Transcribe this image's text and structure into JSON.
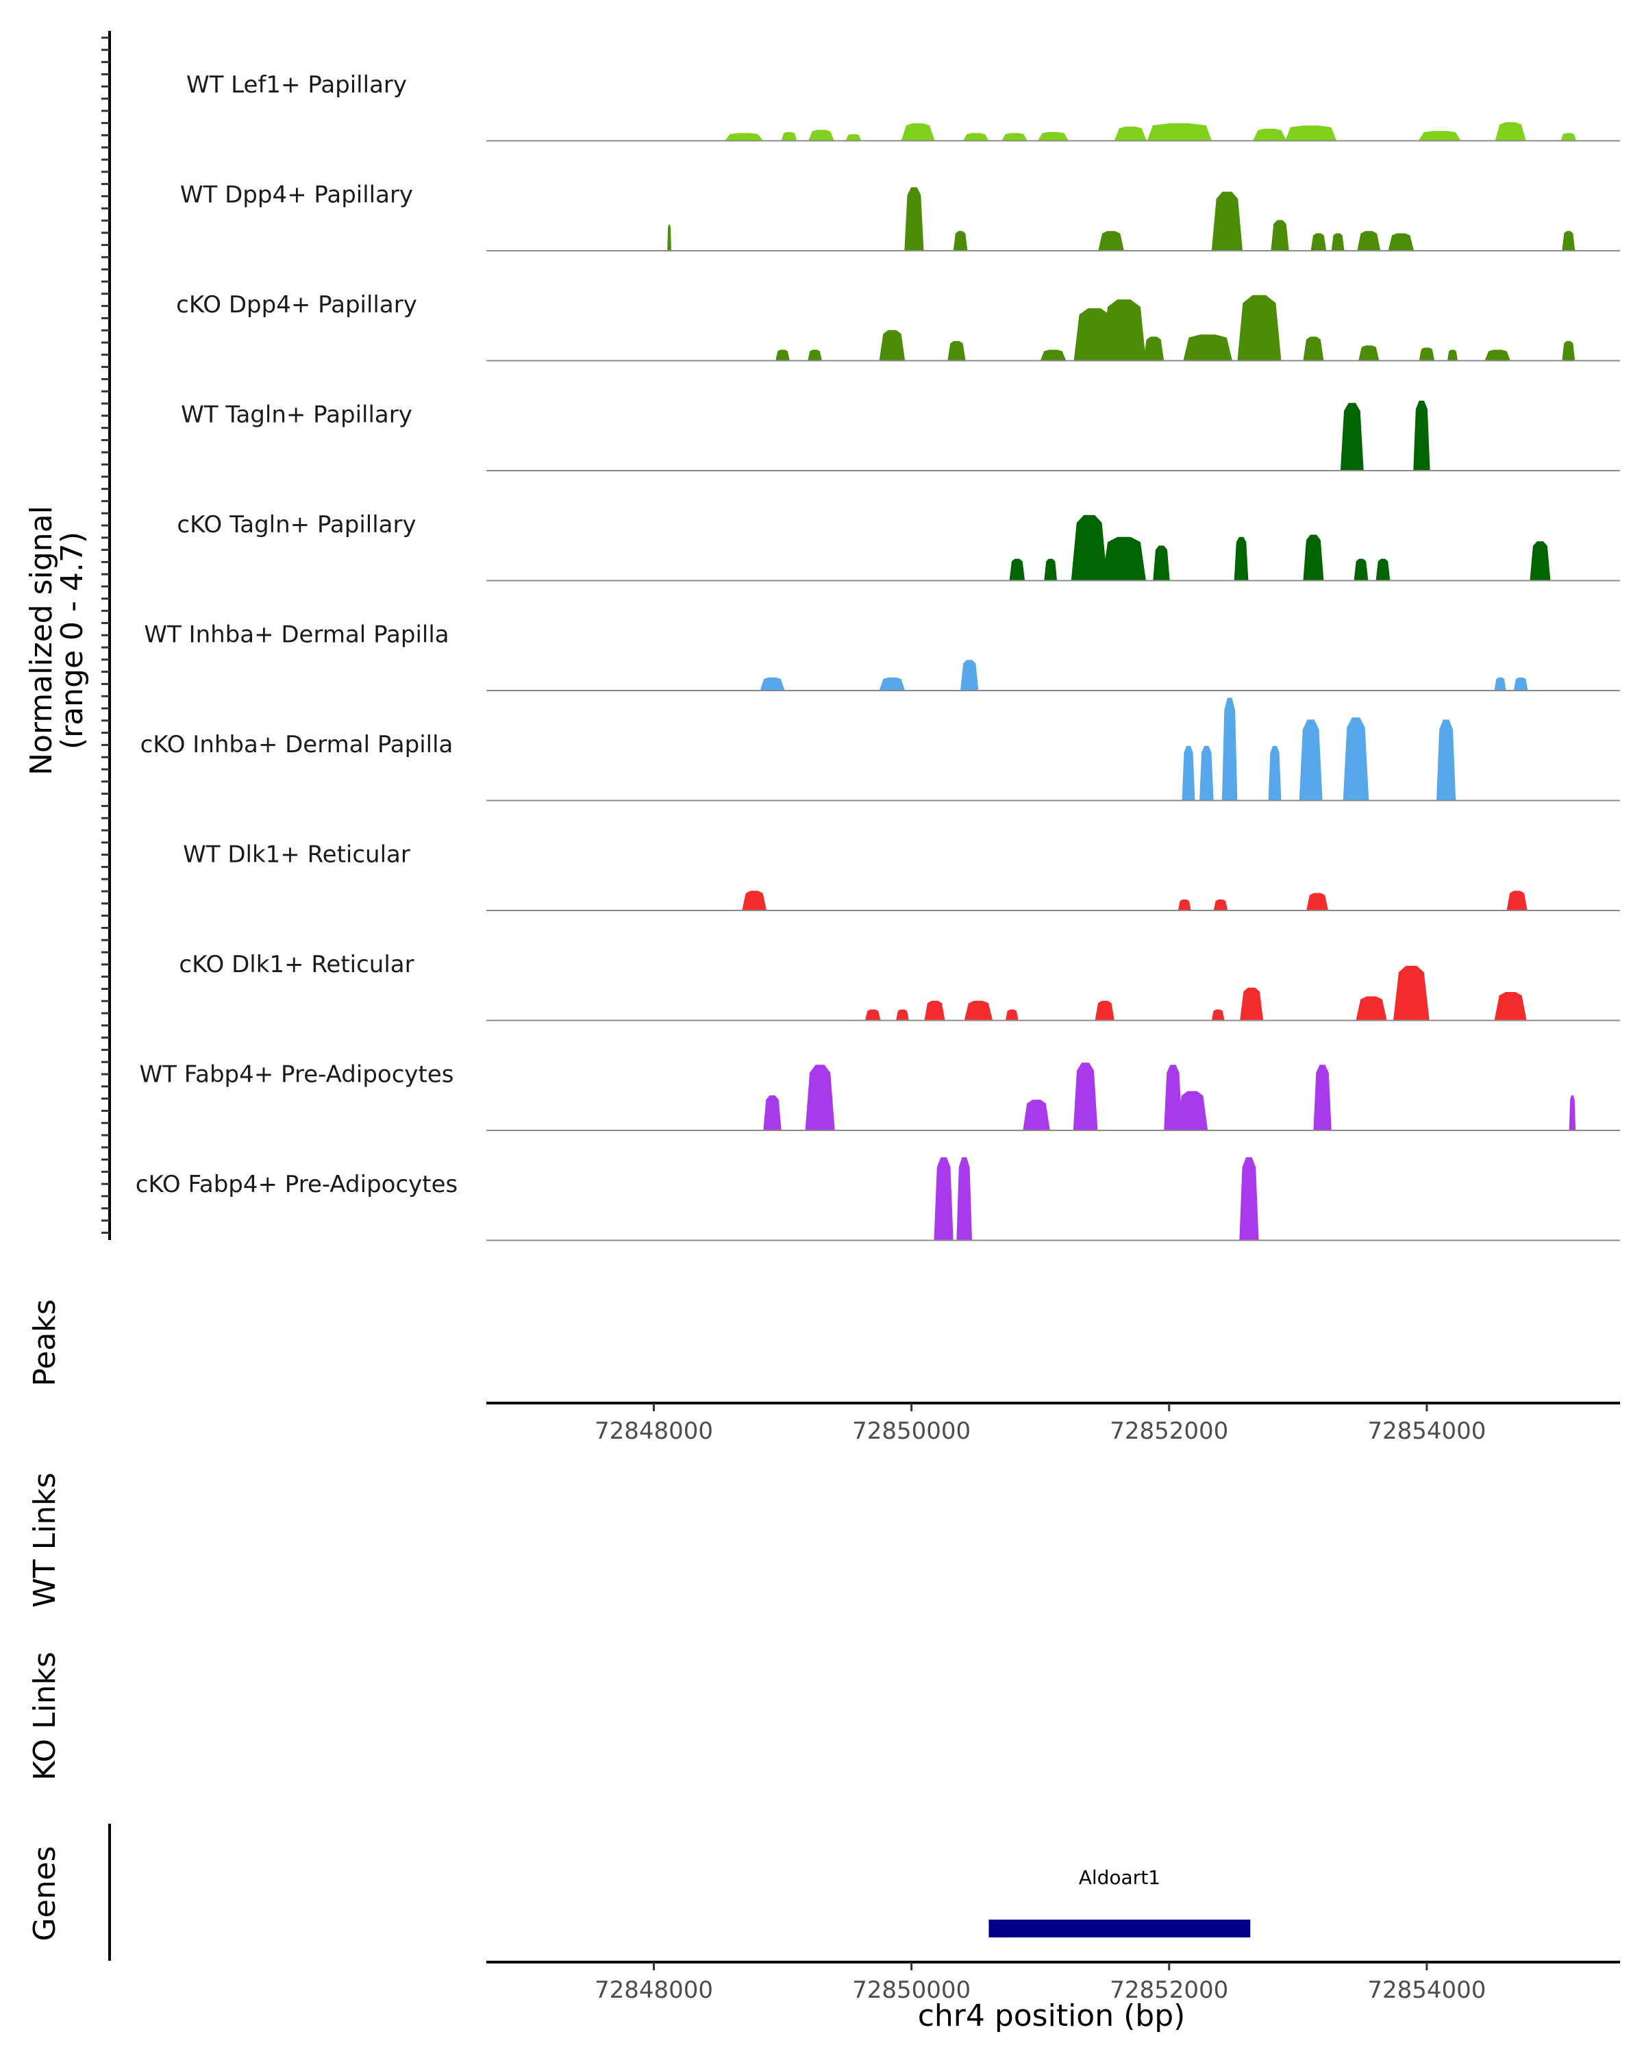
{
  "chart_data": {
    "type": "area",
    "title": "",
    "x_axis_label": "chr4 position (bp)",
    "x_range": [
      72846700,
      72855500
    ],
    "x_ticks": [
      72848000,
      72850000,
      72852000,
      72854000
    ],
    "x_tick_labels": [
      "72848000",
      "72850000",
      "72852000",
      "72854000"
    ],
    "y_axis_label_line1": "Normalized signal",
    "y_axis_label_line2": "(range 0 - 4.7)",
    "y_range": [
      0,
      4.7
    ],
    "track_labels": {
      "peaks": "Peaks",
      "wt_links": "WT Links",
      "ko_links": "KO Links",
      "genes": "Genes"
    },
    "series": [
      {
        "name": "WT Lef1+ Papillary",
        "color": "#7FD11B",
        "peaks": [
          [
            72848700,
            300,
            0.35
          ],
          [
            72849050,
            120,
            0.4
          ],
          [
            72849300,
            200,
            0.5
          ],
          [
            72849550,
            120,
            0.3
          ],
          [
            72850050,
            260,
            0.8
          ],
          [
            72850500,
            200,
            0.35
          ],
          [
            72850800,
            200,
            0.35
          ],
          [
            72851100,
            240,
            0.4
          ],
          [
            72851700,
            250,
            0.65
          ],
          [
            72852080,
            500,
            0.8
          ],
          [
            72852780,
            260,
            0.55
          ],
          [
            72853100,
            400,
            0.7
          ],
          [
            72854100,
            330,
            0.45
          ],
          [
            72854650,
            240,
            0.85
          ],
          [
            72855100,
            120,
            0.35
          ]
        ]
      },
      {
        "name": "WT Dpp4+ Papillary",
        "color": "#4C8C07",
        "peaks": [
          [
            72848120,
            30,
            1.2
          ],
          [
            72850020,
            150,
            2.9
          ],
          [
            72850380,
            110,
            0.9
          ],
          [
            72851550,
            200,
            0.9
          ],
          [
            72852450,
            240,
            2.7
          ],
          [
            72852860,
            140,
            1.4
          ],
          [
            72853160,
            120,
            0.8
          ],
          [
            72853310,
            100,
            0.8
          ],
          [
            72853550,
            180,
            0.9
          ],
          [
            72853800,
            200,
            0.8
          ],
          [
            72855100,
            100,
            0.9
          ]
        ]
      },
      {
        "name": "cKO Dpp4+ Papillary",
        "color": "#4C8C07",
        "peaks": [
          [
            72849000,
            110,
            0.5
          ],
          [
            72849250,
            110,
            0.5
          ],
          [
            72849850,
            200,
            1.4
          ],
          [
            72850350,
            140,
            0.9
          ],
          [
            72851100,
            200,
            0.5
          ],
          [
            72851420,
            320,
            2.4
          ],
          [
            72851650,
            340,
            2.8
          ],
          [
            72851880,
            160,
            1.1
          ],
          [
            72852300,
            380,
            1.2
          ],
          [
            72852700,
            340,
            3.0
          ],
          [
            72853120,
            160,
            1.1
          ],
          [
            72853550,
            160,
            0.7
          ],
          [
            72854000,
            120,
            0.6
          ],
          [
            72854200,
            80,
            0.5
          ],
          [
            72854550,
            200,
            0.5
          ],
          [
            72855100,
            100,
            0.9
          ]
        ]
      },
      {
        "name": "WT Tagln+ Papillary",
        "color": "#006400",
        "peaks": [
          [
            72853420,
            180,
            3.1
          ],
          [
            72853960,
            130,
            3.2
          ]
        ]
      },
      {
        "name": "cKO Tagln+ Papillary",
        "color": "#006400",
        "peaks": [
          [
            72850820,
            120,
            1.0
          ],
          [
            72851080,
            100,
            1.0
          ],
          [
            72851380,
            280,
            3.0
          ],
          [
            72851650,
            340,
            2.0
          ],
          [
            72851940,
            130,
            1.6
          ],
          [
            72852560,
            110,
            2.0
          ],
          [
            72853120,
            160,
            2.1
          ],
          [
            72853490,
            110,
            1.0
          ],
          [
            72853660,
            110,
            1.0
          ],
          [
            72854880,
            160,
            1.8
          ]
        ]
      },
      {
        "name": "WT Inhba+ Dermal Papilla",
        "color": "#56A8EB",
        "peaks": [
          [
            72848920,
            190,
            0.6
          ],
          [
            72849850,
            200,
            0.6
          ],
          [
            72850450,
            140,
            1.4
          ],
          [
            72854570,
            90,
            0.6
          ],
          [
            72854730,
            110,
            0.6
          ]
        ]
      },
      {
        "name": "cKO Inhba+ Dermal Papilla",
        "color": "#56A8EB",
        "peaks": [
          [
            72852150,
            100,
            2.5
          ],
          [
            72852290,
            110,
            2.5
          ],
          [
            72852470,
            120,
            4.7
          ],
          [
            72852820,
            100,
            2.5
          ],
          [
            72853100,
            180,
            3.7
          ],
          [
            72853450,
            200,
            3.8
          ],
          [
            72854150,
            150,
            3.7
          ]
        ]
      },
      {
        "name": "WT Dlk1+ Reticular",
        "color": "#F22C2C",
        "peaks": [
          [
            72848780,
            190,
            0.9
          ],
          [
            72852120,
            100,
            0.5
          ],
          [
            72852400,
            110,
            0.5
          ],
          [
            72853150,
            170,
            0.8
          ],
          [
            72854700,
            160,
            0.9
          ]
        ]
      },
      {
        "name": "cKO Dlk1+ Reticular",
        "color": "#F22C2C",
        "peaks": [
          [
            72849700,
            120,
            0.5
          ],
          [
            72849930,
            100,
            0.5
          ],
          [
            72850180,
            160,
            0.9
          ],
          [
            72850520,
            220,
            0.9
          ],
          [
            72850780,
            100,
            0.5
          ],
          [
            72851500,
            150,
            0.9
          ],
          [
            72852380,
            100,
            0.5
          ],
          [
            72852640,
            180,
            1.5
          ],
          [
            72853570,
            240,
            1.1
          ],
          [
            72853880,
            280,
            2.5
          ],
          [
            72854650,
            250,
            1.3
          ]
        ]
      },
      {
        "name": "WT Fabp4+ Pre-Adipocytes",
        "color": "#A83AEB",
        "peaks": [
          [
            72848920,
            140,
            1.6
          ],
          [
            72849290,
            230,
            3.0
          ],
          [
            72850970,
            210,
            1.4
          ],
          [
            72851350,
            190,
            3.1
          ],
          [
            72852030,
            140,
            3.0
          ],
          [
            72852180,
            240,
            1.8
          ],
          [
            72853190,
            140,
            3.0
          ],
          [
            72855130,
            50,
            1.6
          ]
        ]
      },
      {
        "name": "cKO Fabp4+ Pre-Adipocytes",
        "color": "#A83AEB",
        "peaks": [
          [
            72850250,
            150,
            3.8
          ],
          [
            72850410,
            120,
            3.8
          ],
          [
            72852620,
            150,
            3.8
          ]
        ]
      }
    ],
    "genes": [
      {
        "name": "Aldoart1",
        "start": 72850600,
        "end": 72852630,
        "color": "#00008B"
      }
    ]
  }
}
